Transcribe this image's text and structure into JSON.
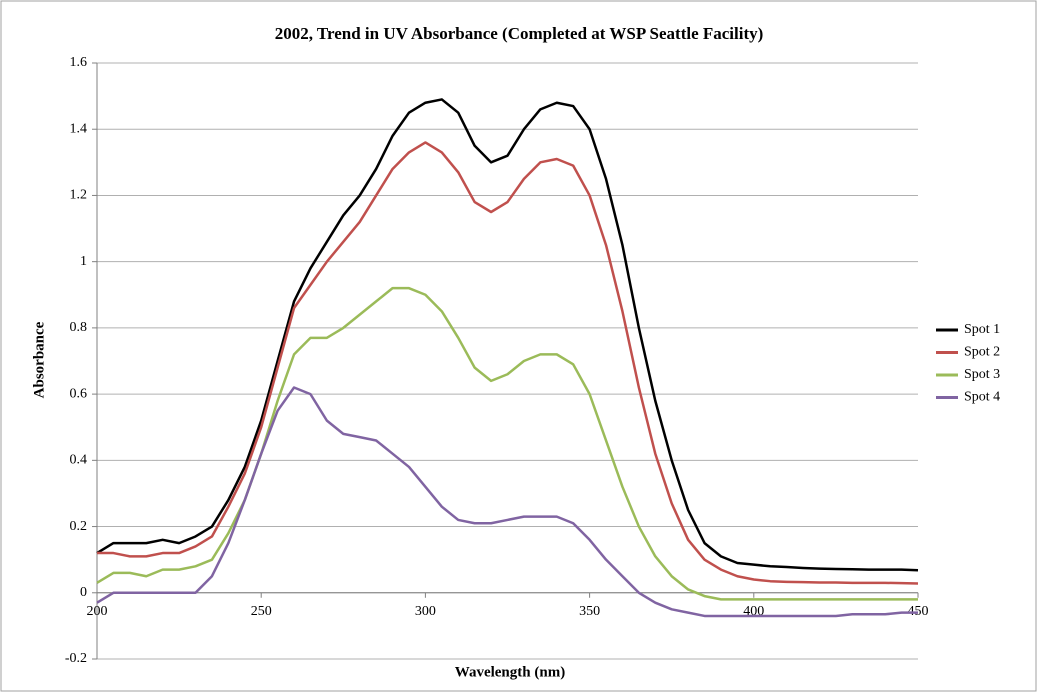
{
  "chart_data": {
    "type": "line",
    "title": "2002, Trend in UV Absorbance (Completed at WSP Seattle Facility)",
    "x_label": "Wavelength (nm)",
    "y_label": "Absorbance",
    "x": [
      200,
      205,
      210,
      215,
      220,
      225,
      230,
      235,
      240,
      245,
      250,
      255,
      260,
      265,
      270,
      275,
      280,
      285,
      290,
      295,
      300,
      305,
      310,
      315,
      320,
      325,
      330,
      335,
      340,
      345,
      350,
      355,
      360,
      365,
      370,
      375,
      380,
      385,
      390,
      395,
      400,
      405,
      410,
      415,
      420,
      425,
      430,
      435,
      440,
      445,
      450
    ],
    "series": [
      {
        "name": "Spot 1",
        "color": "#000000",
        "values": [
          0.12,
          0.15,
          0.15,
          0.15,
          0.16,
          0.15,
          0.17,
          0.2,
          0.28,
          0.38,
          0.52,
          0.7,
          0.88,
          0.98,
          1.06,
          1.14,
          1.2,
          1.28,
          1.38,
          1.45,
          1.48,
          1.49,
          1.45,
          1.35,
          1.3,
          1.32,
          1.4,
          1.46,
          1.48,
          1.47,
          1.4,
          1.25,
          1.05,
          0.8,
          0.58,
          0.4,
          0.25,
          0.15,
          0.11,
          0.09,
          0.085,
          0.08,
          0.078,
          0.075,
          0.073,
          0.072,
          0.071,
          0.07,
          0.07,
          0.07,
          0.068
        ]
      },
      {
        "name": "Spot 2",
        "color": "#c0504d",
        "values": [
          0.12,
          0.12,
          0.11,
          0.11,
          0.12,
          0.12,
          0.14,
          0.17,
          0.26,
          0.36,
          0.5,
          0.68,
          0.86,
          0.93,
          1.0,
          1.06,
          1.12,
          1.2,
          1.28,
          1.33,
          1.36,
          1.33,
          1.27,
          1.18,
          1.15,
          1.18,
          1.25,
          1.3,
          1.31,
          1.29,
          1.2,
          1.05,
          0.85,
          0.62,
          0.42,
          0.27,
          0.16,
          0.1,
          0.07,
          0.05,
          0.04,
          0.035,
          0.033,
          0.032,
          0.031,
          0.031,
          0.03,
          0.03,
          0.03,
          0.029,
          0.028
        ]
      },
      {
        "name": "Spot 3",
        "color": "#9bbb59",
        "values": [
          0.03,
          0.06,
          0.06,
          0.05,
          0.07,
          0.07,
          0.08,
          0.1,
          0.18,
          0.28,
          0.42,
          0.58,
          0.72,
          0.77,
          0.77,
          0.8,
          0.84,
          0.88,
          0.92,
          0.92,
          0.9,
          0.85,
          0.77,
          0.68,
          0.64,
          0.66,
          0.7,
          0.72,
          0.72,
          0.69,
          0.6,
          0.46,
          0.32,
          0.2,
          0.11,
          0.05,
          0.01,
          -0.01,
          -0.02,
          -0.02,
          -0.02,
          -0.02,
          -0.02,
          -0.02,
          -0.02,
          -0.02,
          -0.02,
          -0.02,
          -0.02,
          -0.02,
          -0.02
        ]
      },
      {
        "name": "Spot 4",
        "color": "#8064a2",
        "values": [
          -0.03,
          0.0,
          0.0,
          0.0,
          0.0,
          0.0,
          0.0,
          0.05,
          0.15,
          0.28,
          0.42,
          0.55,
          0.62,
          0.6,
          0.52,
          0.48,
          0.47,
          0.46,
          0.42,
          0.38,
          0.32,
          0.26,
          0.22,
          0.21,
          0.21,
          0.22,
          0.23,
          0.23,
          0.23,
          0.21,
          0.16,
          0.1,
          0.05,
          0.0,
          -0.03,
          -0.05,
          -0.06,
          -0.07,
          -0.07,
          -0.07,
          -0.07,
          -0.07,
          -0.07,
          -0.07,
          -0.07,
          -0.07,
          -0.065,
          -0.065,
          -0.065,
          -0.06,
          -0.06
        ]
      }
    ],
    "xlim": [
      200,
      450
    ],
    "xticks": [
      200,
      250,
      300,
      350,
      400,
      450
    ],
    "ylim": [
      -0.2,
      1.6
    ],
    "yticks": [
      -0.2,
      0,
      0.2,
      0.4,
      0.6,
      0.8,
      1,
      1.2,
      1.4,
      1.6
    ],
    "grid": true,
    "legend": "right"
  }
}
